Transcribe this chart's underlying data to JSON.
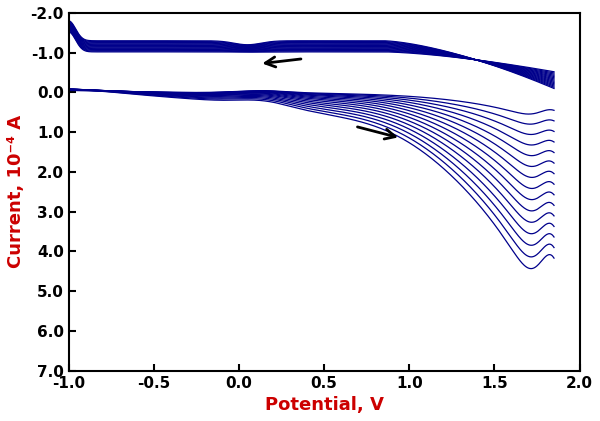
{
  "xlabel": "Potential, V",
  "ylabel": "Current, 10⁻⁴ A",
  "xlabel_color": "#cc0000",
  "ylabel_color": "#cc0000",
  "line_color": "#00008B",
  "xlim": [
    -1.0,
    2.0
  ],
  "ylim": [
    -2.0,
    7.0
  ],
  "xticks": [
    -1.0,
    -0.5,
    0.0,
    0.5,
    1.0,
    1.5,
    2.0
  ],
  "yticks": [
    -2.0,
    -1.0,
    0.0,
    1.0,
    2.0,
    3.0,
    4.0,
    5.0,
    6.0,
    7.0
  ],
  "n_cycles": 15,
  "figsize": [
    6.0,
    4.21
  ],
  "dpi": 100
}
